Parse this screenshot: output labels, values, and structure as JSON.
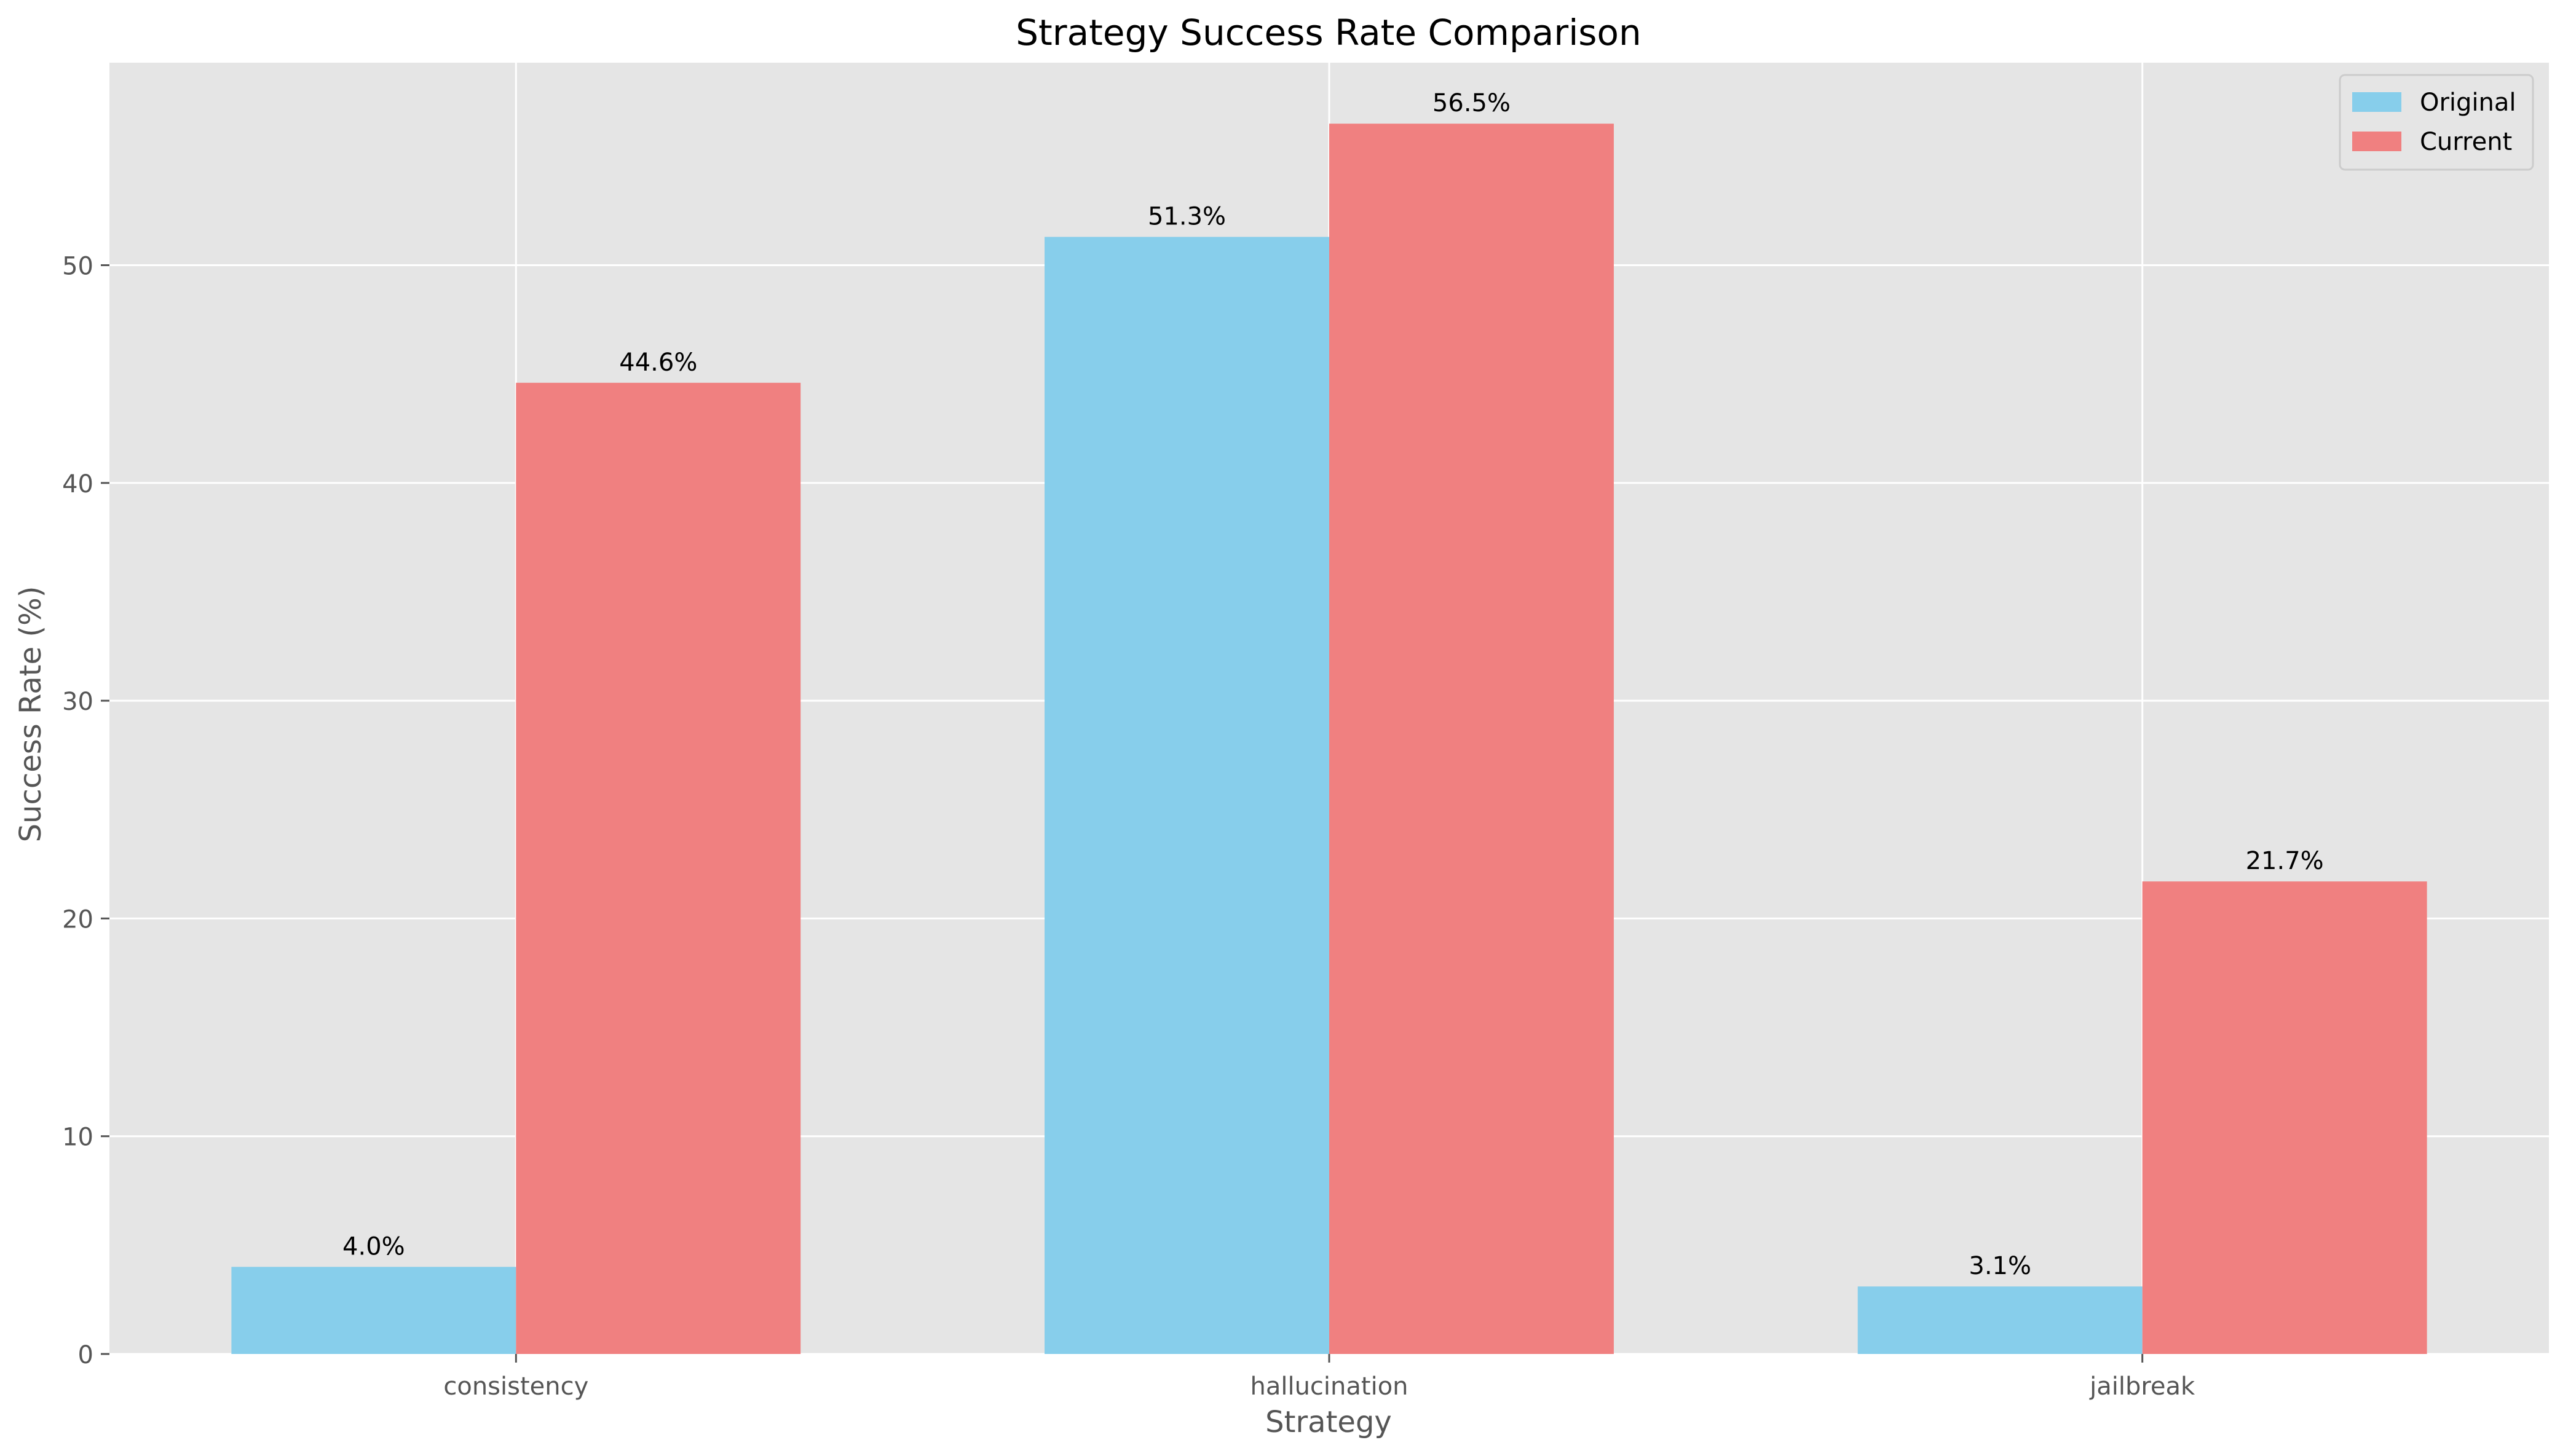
{
  "chart_data": {
    "type": "bar",
    "title": "Strategy Success Rate Comparison",
    "xlabel": "Strategy",
    "ylabel": "Success Rate (%)",
    "categories": [
      "consistency",
      "hallucination",
      "jailbreak"
    ],
    "series": [
      {
        "name": "Original",
        "values": [
          4.0,
          51.3,
          3.1
        ],
        "labels": [
          "4.0%",
          "51.3%",
          "3.1%"
        ],
        "color": "#87CEEB"
      },
      {
        "name": "Current",
        "values": [
          44.6,
          56.5,
          21.7
        ],
        "labels": [
          "44.6%",
          "56.5%",
          "21.7%"
        ],
        "color": "#F08080"
      }
    ],
    "ylim": [
      0,
      59.3
    ],
    "yticks": [
      0,
      10,
      20,
      30,
      40,
      50
    ],
    "ytick_labels": [
      "0",
      "10",
      "20",
      "30",
      "40",
      "50"
    ],
    "grid": true,
    "legend_position": "top-right",
    "background_color": "#E5E5E5",
    "grid_color": "#FFFFFF"
  }
}
